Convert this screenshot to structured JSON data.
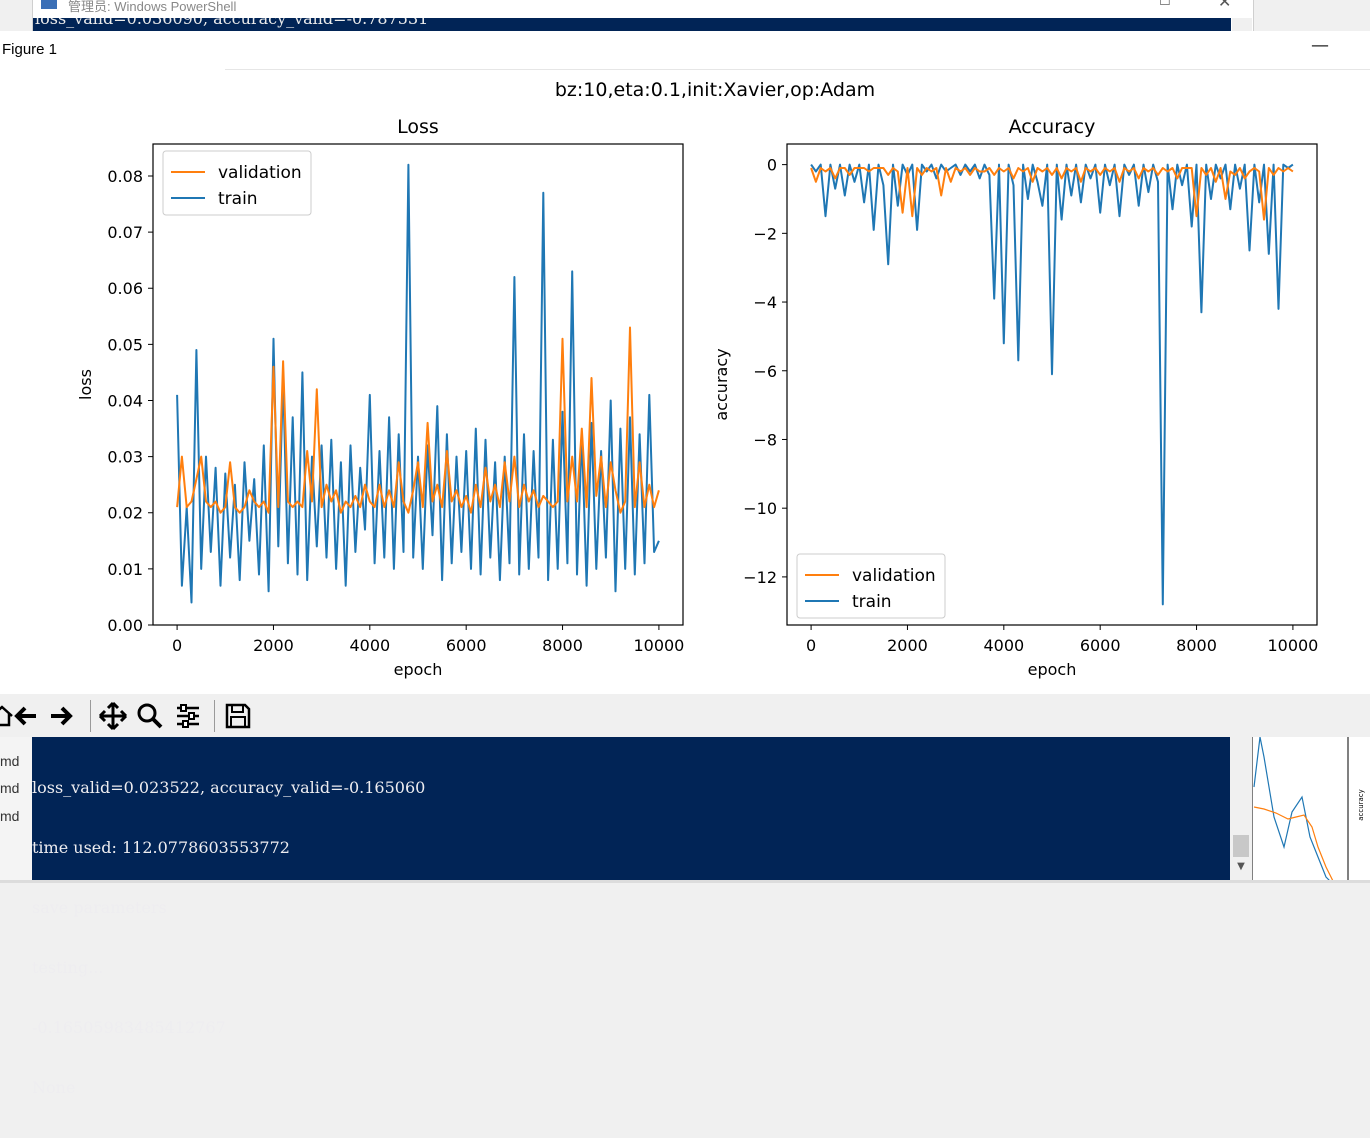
{
  "background_window": {
    "title": "管理员: Windows PowerShell",
    "console_line": "loss_valid=0.036090, accuracy_valid=-0.787531",
    "left_edge_char": "¬"
  },
  "figure_window": {
    "title": "Figure 1",
    "minimize_symbol": "—"
  },
  "toolbar": {
    "buttons": [
      "home-icon",
      "back-icon",
      "forward-icon",
      "pan-icon",
      "zoom-icon",
      "configure-subplots-icon",
      "save-icon"
    ]
  },
  "console": {
    "lines": [
      "loss_valid=0.023522, accuracy_valid=-0.165060",
      "time used: 112.0778603553772",
      "save parameters",
      "testing...",
      "-0.16505983485412767",
      "None"
    ],
    "side_labels": [
      "md",
      "md",
      "md"
    ]
  },
  "thumbnail": {
    "ylabel": "accuracy"
  },
  "colors": {
    "train": "#1f77b4",
    "validation": "#ff7f0e",
    "console_bg": "#012456"
  },
  "chart_data": [
    {
      "type": "line",
      "suptitle": "bz:10,eta:0.1,init:Xavier,op:Adam",
      "title": "Loss",
      "xlabel": "epoch",
      "ylabel": "loss",
      "xlim": [
        -500,
        10500
      ],
      "ylim": [
        0.0,
        0.0857
      ],
      "xticks": [
        0,
        2000,
        4000,
        6000,
        8000,
        10000
      ],
      "yticks": [
        0.0,
        0.01,
        0.02,
        0.03,
        0.04,
        0.05,
        0.06,
        0.07,
        0.08
      ],
      "ytick_labels": [
        "0.00",
        "0.01",
        "0.02",
        "0.03",
        "0.04",
        "0.05",
        "0.06",
        "0.07",
        "0.08"
      ],
      "legend": "upper left",
      "series": [
        {
          "name": "validation",
          "color": "#ff7f0e",
          "x": [
            0,
            100,
            200,
            300,
            400,
            500,
            600,
            700,
            800,
            900,
            1000,
            1100,
            1200,
            1300,
            1400,
            1500,
            1600,
            1700,
            1800,
            1900,
            2000,
            2100,
            2200,
            2300,
            2400,
            2500,
            2600,
            2700,
            2800,
            2900,
            3000,
            3100,
            3200,
            3300,
            3400,
            3500,
            3600,
            3700,
            3800,
            3900,
            4000,
            4100,
            4200,
            4300,
            4400,
            4500,
            4600,
            4700,
            4800,
            4900,
            5000,
            5100,
            5200,
            5300,
            5400,
            5500,
            5600,
            5700,
            5800,
            5900,
            6000,
            6100,
            6200,
            6300,
            6400,
            6500,
            6600,
            6700,
            6800,
            6900,
            7000,
            7100,
            7200,
            7300,
            7400,
            7500,
            7600,
            7700,
            7800,
            7900,
            8000,
            8100,
            8200,
            8300,
            8400,
            8500,
            8600,
            8700,
            8800,
            8900,
            9000,
            9100,
            9200,
            9300,
            9400,
            9500,
            9600,
            9700,
            9800,
            9900,
            10000
          ],
          "values": [
            0.021,
            0.03,
            0.021,
            0.022,
            0.026,
            0.03,
            0.022,
            0.021,
            0.022,
            0.02,
            0.021,
            0.029,
            0.021,
            0.02,
            0.021,
            0.024,
            0.022,
            0.021,
            0.022,
            0.02,
            0.046,
            0.021,
            0.047,
            0.022,
            0.021,
            0.022,
            0.021,
            0.031,
            0.022,
            0.042,
            0.021,
            0.025,
            0.022,
            0.024,
            0.02,
            0.022,
            0.021,
            0.023,
            0.021,
            0.025,
            0.022,
            0.021,
            0.025,
            0.021,
            0.024,
            0.021,
            0.029,
            0.022,
            0.02,
            0.024,
            0.029,
            0.021,
            0.036,
            0.022,
            0.025,
            0.021,
            0.031,
            0.022,
            0.024,
            0.021,
            0.023,
            0.02,
            0.025,
            0.021,
            0.028,
            0.022,
            0.025,
            0.021,
            0.029,
            0.022,
            0.03,
            0.021,
            0.025,
            0.022,
            0.024,
            0.021,
            0.023,
            0.022,
            0.021,
            0.022,
            0.051,
            0.022,
            0.03,
            0.022,
            0.035,
            0.021,
            0.044,
            0.023,
            0.03,
            0.021,
            0.029,
            0.024,
            0.02,
            0.022,
            0.053,
            0.021,
            0.029,
            0.021,
            0.025,
            0.021,
            0.024
          ]
        },
        {
          "name": "train",
          "color": "#1f77b4",
          "x": [
            0,
            100,
            200,
            300,
            400,
            500,
            600,
            700,
            800,
            900,
            1000,
            1100,
            1200,
            1300,
            1400,
            1500,
            1600,
            1700,
            1800,
            1900,
            2000,
            2100,
            2200,
            2300,
            2400,
            2500,
            2600,
            2700,
            2800,
            2900,
            3000,
            3100,
            3200,
            3300,
            3400,
            3500,
            3600,
            3700,
            3800,
            3900,
            4000,
            4100,
            4200,
            4300,
            4400,
            4500,
            4600,
            4700,
            4800,
            4900,
            5000,
            5100,
            5200,
            5300,
            5400,
            5500,
            5600,
            5700,
            5800,
            5900,
            6000,
            6100,
            6200,
            6300,
            6400,
            6500,
            6600,
            6700,
            6800,
            6900,
            7000,
            7100,
            7200,
            7300,
            7400,
            7500,
            7600,
            7700,
            7800,
            7900,
            8000,
            8100,
            8200,
            8300,
            8400,
            8500,
            8600,
            8700,
            8800,
            8900,
            9000,
            9100,
            9200,
            9300,
            9400,
            9500,
            9600,
            9700,
            9800,
            9900,
            10000
          ],
          "values": [
            0.041,
            0.007,
            0.021,
            0.004,
            0.049,
            0.01,
            0.03,
            0.013,
            0.028,
            0.007,
            0.027,
            0.012,
            0.025,
            0.008,
            0.029,
            0.015,
            0.026,
            0.009,
            0.032,
            0.006,
            0.051,
            0.014,
            0.044,
            0.011,
            0.037,
            0.009,
            0.045,
            0.008,
            0.03,
            0.014,
            0.032,
            0.012,
            0.033,
            0.01,
            0.029,
            0.007,
            0.032,
            0.013,
            0.028,
            0.017,
            0.041,
            0.011,
            0.031,
            0.012,
            0.037,
            0.01,
            0.034,
            0.013,
            0.082,
            0.012,
            0.03,
            0.01,
            0.032,
            0.016,
            0.039,
            0.008,
            0.034,
            0.011,
            0.03,
            0.013,
            0.031,
            0.01,
            0.035,
            0.009,
            0.033,
            0.012,
            0.029,
            0.008,
            0.03,
            0.011,
            0.062,
            0.009,
            0.034,
            0.01,
            0.031,
            0.012,
            0.077,
            0.008,
            0.033,
            0.01,
            0.038,
            0.011,
            0.063,
            0.009,
            0.034,
            0.007,
            0.036,
            0.01,
            0.031,
            0.012,
            0.04,
            0.006,
            0.035,
            0.01,
            0.037,
            0.009,
            0.034,
            0.011,
            0.041,
            0.013,
            0.015
          ]
        }
      ]
    },
    {
      "type": "line",
      "title": "Accuracy",
      "xlabel": "epoch",
      "ylabel": "accuracy",
      "xlim": [
        -500,
        10500
      ],
      "ylim": [
        -13.4,
        0.6
      ],
      "xticks": [
        0,
        2000,
        4000,
        6000,
        8000,
        10000
      ],
      "yticks": [
        0,
        -2,
        -4,
        -6,
        -8,
        -10,
        -12
      ],
      "ytick_labels": [
        "0",
        "−2",
        "−4",
        "−6",
        "−8",
        "−10",
        "−12"
      ],
      "legend": "lower left",
      "series": [
        {
          "name": "validation",
          "color": "#ff7f0e",
          "x": [
            0,
            100,
            200,
            300,
            400,
            500,
            600,
            700,
            800,
            900,
            1000,
            1100,
            1200,
            1300,
            1400,
            1500,
            1600,
            1700,
            1800,
            1900,
            2000,
            2100,
            2200,
            2300,
            2400,
            2500,
            2600,
            2700,
            2800,
            2900,
            3000,
            3100,
            3200,
            3300,
            3400,
            3500,
            3600,
            3700,
            3800,
            3900,
            4000,
            4100,
            4200,
            4300,
            4400,
            4500,
            4600,
            4700,
            4800,
            4900,
            5000,
            5100,
            5200,
            5300,
            5400,
            5500,
            5600,
            5700,
            5800,
            5900,
            6000,
            6100,
            6200,
            6300,
            6400,
            6500,
            6600,
            6700,
            6800,
            6900,
            7000,
            7100,
            7200,
            7300,
            7400,
            7500,
            7600,
            7700,
            7800,
            7900,
            8000,
            8100,
            8200,
            8300,
            8400,
            8500,
            8600,
            8700,
            8800,
            8900,
            9000,
            9100,
            9200,
            9300,
            9400,
            9500,
            9600,
            9700,
            9800,
            9900,
            10000
          ],
          "values": [
            -0.1,
            -0.5,
            -0.1,
            -0.2,
            -0.1,
            -0.4,
            -0.1,
            -0.1,
            -0.3,
            -0.1,
            -0.1,
            -0.1,
            -0.2,
            -0.1,
            -0.1,
            -0.1,
            -0.3,
            -0.1,
            -0.2,
            -1.4,
            -0.1,
            -1.5,
            -0.1,
            -0.3,
            -0.1,
            -0.2,
            -0.1,
            -0.9,
            -0.1,
            -0.5,
            -0.1,
            -0.2,
            -0.1,
            -0.3,
            -0.1,
            -0.2,
            -0.2,
            -0.1,
            -0.3,
            -0.1,
            -0.2,
            -0.1,
            -0.4,
            -0.1,
            -0.2,
            -0.1,
            -0.5,
            -0.1,
            -0.2,
            -0.1,
            -0.3,
            -0.1,
            -0.4,
            -0.1,
            -0.2,
            -0.1,
            -0.5,
            -0.1,
            -0.2,
            -0.1,
            -0.3,
            -0.1,
            -0.2,
            -0.1,
            -0.5,
            -0.1,
            -0.2,
            -0.1,
            -0.4,
            -0.1,
            -0.2,
            -0.1,
            -0.3,
            -0.1,
            -0.2,
            -0.1,
            -0.4,
            -0.1,
            -0.1,
            -0.1,
            -1.5,
            -0.1,
            -0.3,
            -0.1,
            -0.5,
            -0.1,
            -1.0,
            -0.2,
            -0.3,
            -0.1,
            -0.4,
            -0.2,
            -0.1,
            -0.2,
            -1.6,
            -0.1,
            -0.3,
            -0.1,
            -0.2,
            -0.1,
            -0.2
          ]
        },
        {
          "name": "train",
          "color": "#1f77b4",
          "x": [
            0,
            100,
            200,
            300,
            400,
            500,
            600,
            700,
            800,
            900,
            1000,
            1100,
            1200,
            1300,
            1400,
            1500,
            1600,
            1700,
            1800,
            1900,
            2000,
            2100,
            2200,
            2300,
            2400,
            2500,
            2600,
            2700,
            2800,
            2900,
            3000,
            3100,
            3200,
            3300,
            3400,
            3500,
            3600,
            3700,
            3800,
            3900,
            4000,
            4100,
            4200,
            4300,
            4400,
            4500,
            4600,
            4700,
            4800,
            4900,
            5000,
            5100,
            5200,
            5300,
            5400,
            5500,
            5600,
            5700,
            5800,
            5900,
            6000,
            6100,
            6200,
            6300,
            6400,
            6500,
            6600,
            6700,
            6800,
            6900,
            7000,
            7100,
            7200,
            7300,
            7400,
            7500,
            7600,
            7700,
            7800,
            7900,
            8000,
            8100,
            8200,
            8300,
            8400,
            8500,
            8600,
            8700,
            8800,
            8900,
            9000,
            9100,
            9200,
            9300,
            9400,
            9500,
            9600,
            9700,
            9800,
            9900,
            10000
          ],
          "values": [
            0.0,
            -0.2,
            0.0,
            -1.5,
            0.0,
            -0.7,
            0.0,
            -0.9,
            0.0,
            -0.5,
            0.0,
            -1.1,
            0.0,
            -1.9,
            0.0,
            -0.6,
            -2.9,
            0.0,
            -1.2,
            0.0,
            -0.3,
            0.0,
            -1.9,
            0.0,
            -0.2,
            0.0,
            -0.4,
            0.0,
            -0.2,
            -0.1,
            0.0,
            -0.3,
            0.0,
            -0.2,
            0.0,
            -0.4,
            0.0,
            -0.3,
            -3.9,
            0.0,
            -5.2,
            0.0,
            -0.6,
            -5.7,
            0.0,
            -1.0,
            0.0,
            -0.5,
            -1.2,
            0.0,
            -6.1,
            0.0,
            -1.6,
            0.0,
            -0.9,
            0.0,
            -1.1,
            0.0,
            -0.4,
            0.0,
            -1.4,
            0.0,
            -0.6,
            0.0,
            -1.5,
            0.0,
            -0.3,
            0.0,
            -1.2,
            0.0,
            -0.8,
            0.0,
            -0.5,
            -12.8,
            0.0,
            -1.3,
            0.0,
            -0.6,
            0.0,
            -1.8,
            0.0,
            -4.3,
            0.0,
            -1.0,
            0.0,
            -0.4,
            0.0,
            -1.3,
            0.0,
            -0.7,
            0.0,
            -2.5,
            0.0,
            -1.1,
            0.0,
            -2.6,
            0.0,
            -4.2,
            0.0,
            -0.1,
            0.0
          ]
        }
      ]
    }
  ]
}
